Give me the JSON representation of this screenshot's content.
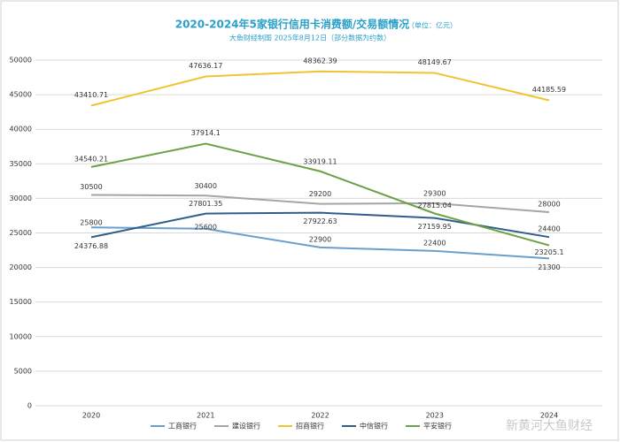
{
  "chart_data": {
    "type": "line",
    "title": "2020-2024年5家银行信用卡消费额/交易额情况",
    "title_unit": "（单位：亿元）",
    "subtitle": "大鱼财经制图 2025年8月12日（部分数据为约数）",
    "categories": [
      "2020",
      "2021",
      "2022",
      "2023",
      "2024"
    ],
    "series": [
      {
        "name": "工商银行",
        "color": "#6a9fcb",
        "values": [
          25800,
          25600,
          22900,
          22400,
          21300
        ]
      },
      {
        "name": "建设银行",
        "color": "#a5a5a5",
        "values": [
          30500,
          30400,
          29200,
          29300,
          28000
        ]
      },
      {
        "name": "招商银行",
        "color": "#f0c330",
        "values": [
          43410.71,
          47636.17,
          48362.39,
          48149.67,
          44185.59
        ]
      },
      {
        "name": "中信银行",
        "color": "#2f5e8c",
        "values": [
          24376.88,
          27801.35,
          27922.63,
          27159.95,
          24400
        ]
      },
      {
        "name": "平安银行",
        "color": "#6ea046",
        "values": [
          34540.21,
          37914.1,
          33919.11,
          27815.04,
          23205.1
        ]
      }
    ],
    "ylim": [
      0,
      50000
    ],
    "yticks": [
      0,
      5000,
      10000,
      15000,
      20000,
      25000,
      30000,
      35000,
      40000,
      45000,
      50000
    ],
    "grid": true,
    "legend": "bottom",
    "watermark": "新黄河大鱼财经"
  }
}
